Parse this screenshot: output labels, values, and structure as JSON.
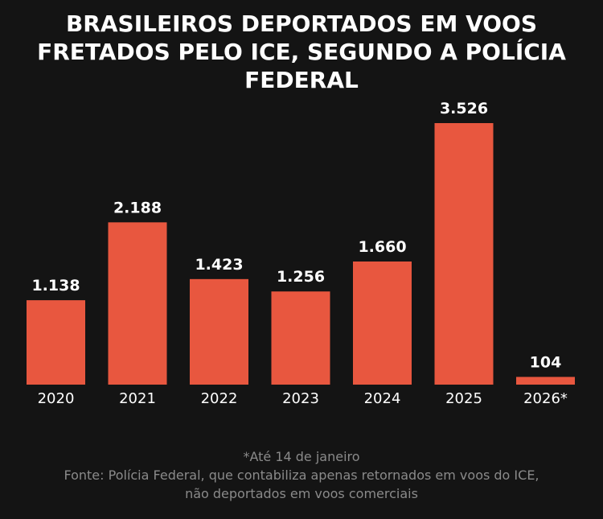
{
  "chart_data": {
    "type": "bar",
    "title": "BRASILEIROS DEPORTADOS EM VOOS FRETADOS PELO ICE, SEGUNDO A POLÍCIA FEDERAL",
    "categories": [
      "2020",
      "2021",
      "2022",
      "2023",
      "2024",
      "2025",
      "2026*"
    ],
    "values": [
      1138,
      2188,
      1423,
      1256,
      1660,
      3526,
      104
    ],
    "data_labels": [
      "1.138",
      "2.188",
      "1.423",
      "1.256",
      "1.660",
      "3.526",
      "104"
    ],
    "xlabel": "",
    "ylabel": "",
    "ylim": [
      0,
      3526
    ],
    "grid": false,
    "colors": {
      "bar": "#e8573f",
      "background": "#141414",
      "text": "#ffffff",
      "note": "#8a8a8a"
    }
  },
  "notes": {
    "footnote": "*Até 14 de janeiro",
    "source_line1": "Fonte: Polícia Federal, que contabiliza apenas retornados em voos do ICE,",
    "source_line2": "não deportados em voos comerciais"
  }
}
